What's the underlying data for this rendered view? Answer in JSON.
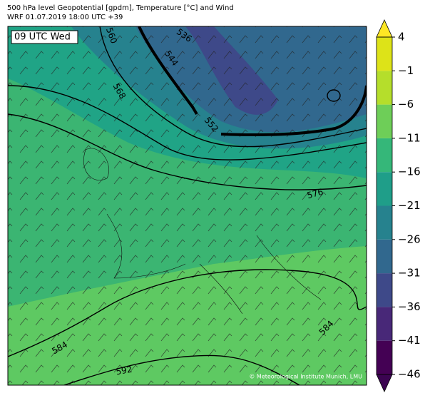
{
  "header": {
    "line1": "500 hPa level Geopotential [gpdm], Temperature [°C] and Wind",
    "line2": "WRF 01.07.2019 18:00 UTC +39"
  },
  "time_label": "09 UTC Wed",
  "contour_labels": [
    560,
    536,
    544,
    568,
    552,
    576,
    584,
    584,
    592
  ],
  "colorbar": {
    "ticks": [
      4,
      {
        "value": -1,
        "label": "−1"
      },
      {
        "value": -6,
        "label": "−6"
      },
      {
        "value": -11,
        "label": "−11"
      },
      {
        "value": -16,
        "label": "−16"
      },
      {
        "value": -21,
        "label": "−21"
      },
      {
        "value": -26,
        "label": "−26"
      },
      {
        "value": -31,
        "label": "−31"
      },
      {
        "value": -36,
        "label": "−36"
      },
      {
        "value": -41,
        "label": "−41"
      },
      {
        "value": -46,
        "label": "−46"
      }
    ],
    "colors": [
      "#440154",
      "#482878",
      "#3e4989",
      "#31688e",
      "#26828e",
      "#1f9e89",
      "#35b779",
      "#6ece58",
      "#b5de2b",
      "#dde318"
    ],
    "over_color": "#fde725",
    "under_color": "#3b0451"
  },
  "credit": "© Meteorological Institute Munich, LMU"
}
